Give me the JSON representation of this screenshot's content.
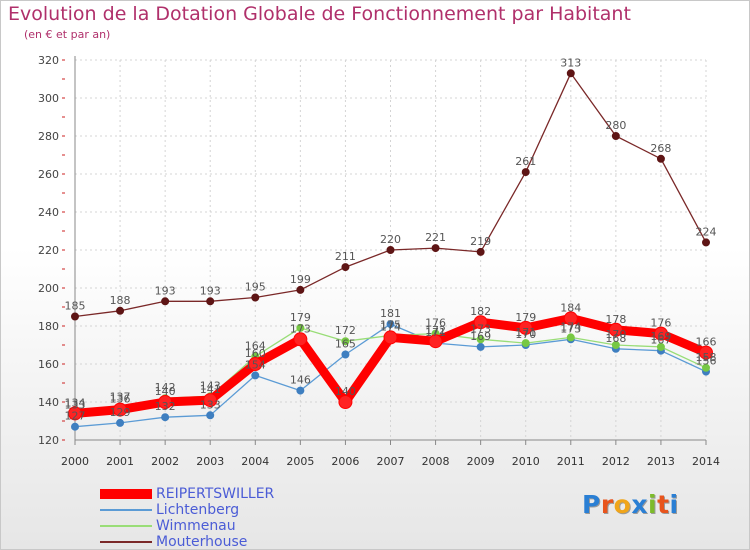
{
  "header": {
    "title": "Evolution de la Dotation Globale de Fonctionnement par Habitant",
    "subtitle": "(en € et par an)"
  },
  "logo": {
    "text": "Proxiti",
    "colors": [
      "#2a7fd4",
      "#e8541c",
      "#f0a51a",
      "#2a7fd4",
      "#7dbb2a",
      "#e8541c",
      "#2a7fd4"
    ]
  },
  "chart_data": {
    "type": "line",
    "title": "Evolution de la Dotation Globale de Fonctionnement par Habitant",
    "subtitle": "(en € et par an)",
    "x": [
      "2000",
      "2001",
      "2002",
      "2003",
      "2004",
      "2005",
      "2006",
      "2007",
      "2008",
      "2009",
      "2010",
      "2011",
      "2012",
      "2013",
      "2014"
    ],
    "ylim": [
      120,
      320
    ],
    "yticks": [
      120,
      140,
      160,
      180,
      200,
      220,
      240,
      260,
      280,
      300,
      320
    ],
    "grid": true,
    "legend_position": "bottom-left",
    "series": [
      {
        "name": "Mouterhouse",
        "color": "#7a2828",
        "marker": "#5e1515",
        "values": [
          185,
          188,
          193,
          193,
          195,
          199,
          211,
          220,
          221,
          219,
          261,
          313,
          280,
          268,
          224
        ],
        "labels": [
          "185",
          "188",
          "193",
          "193",
          "195",
          "199",
          "211",
          "220",
          "221",
          "219",
          "261",
          "313",
          "280",
          "268",
          "224"
        ]
      },
      {
        "name": "Lichtenberg",
        "color": "#5b9bd5",
        "marker": "#3f7fc0",
        "values": [
          127,
          129,
          132,
          133,
          154,
          146,
          165,
          181,
          171,
          169,
          170,
          173,
          168,
          167,
          156
        ],
        "labels": [
          "127",
          "129",
          "132",
          "133",
          "154",
          "146",
          "165",
          "181",
          "171",
          "169",
          "170",
          "173",
          "168",
          "167",
          "156"
        ]
      },
      {
        "name": "Wimmenau",
        "color": "#99dd77",
        "marker": "#77c844",
        "values": [
          133,
          137,
          142,
          143,
          164,
          179,
          172,
          175,
          176,
          173,
          171,
          174,
          170,
          169,
          158
        ],
        "labels": [
          "133",
          "137",
          "142",
          "143",
          "164",
          "179",
          "172",
          "175",
          "176",
          "173",
          "171",
          "174",
          "170",
          "169",
          "158"
        ]
      },
      {
        "name": "REIPERTSWILLER",
        "color": "#ff0000",
        "marker": "#ff2222",
        "values": [
          134,
          136,
          140,
          141,
          160,
          173,
          140,
          174,
          172,
          182,
          179,
          184,
          178,
          176,
          166
        ],
        "labels": [
          "134",
          "136",
          "140",
          "141",
          "160",
          "173",
          "140",
          "174",
          "172",
          "182",
          "179",
          "184",
          "178",
          "176",
          "166"
        ]
      }
    ]
  },
  "legend": {
    "items": [
      {
        "label": "REIPERTSWILLER",
        "color": "#ff0000"
      },
      {
        "label": "Lichtenberg",
        "color": "#5b9bd5"
      },
      {
        "label": "Wimmenau",
        "color": "#99dd77"
      },
      {
        "label": "Mouterhouse",
        "color": "#7a2828"
      }
    ]
  }
}
